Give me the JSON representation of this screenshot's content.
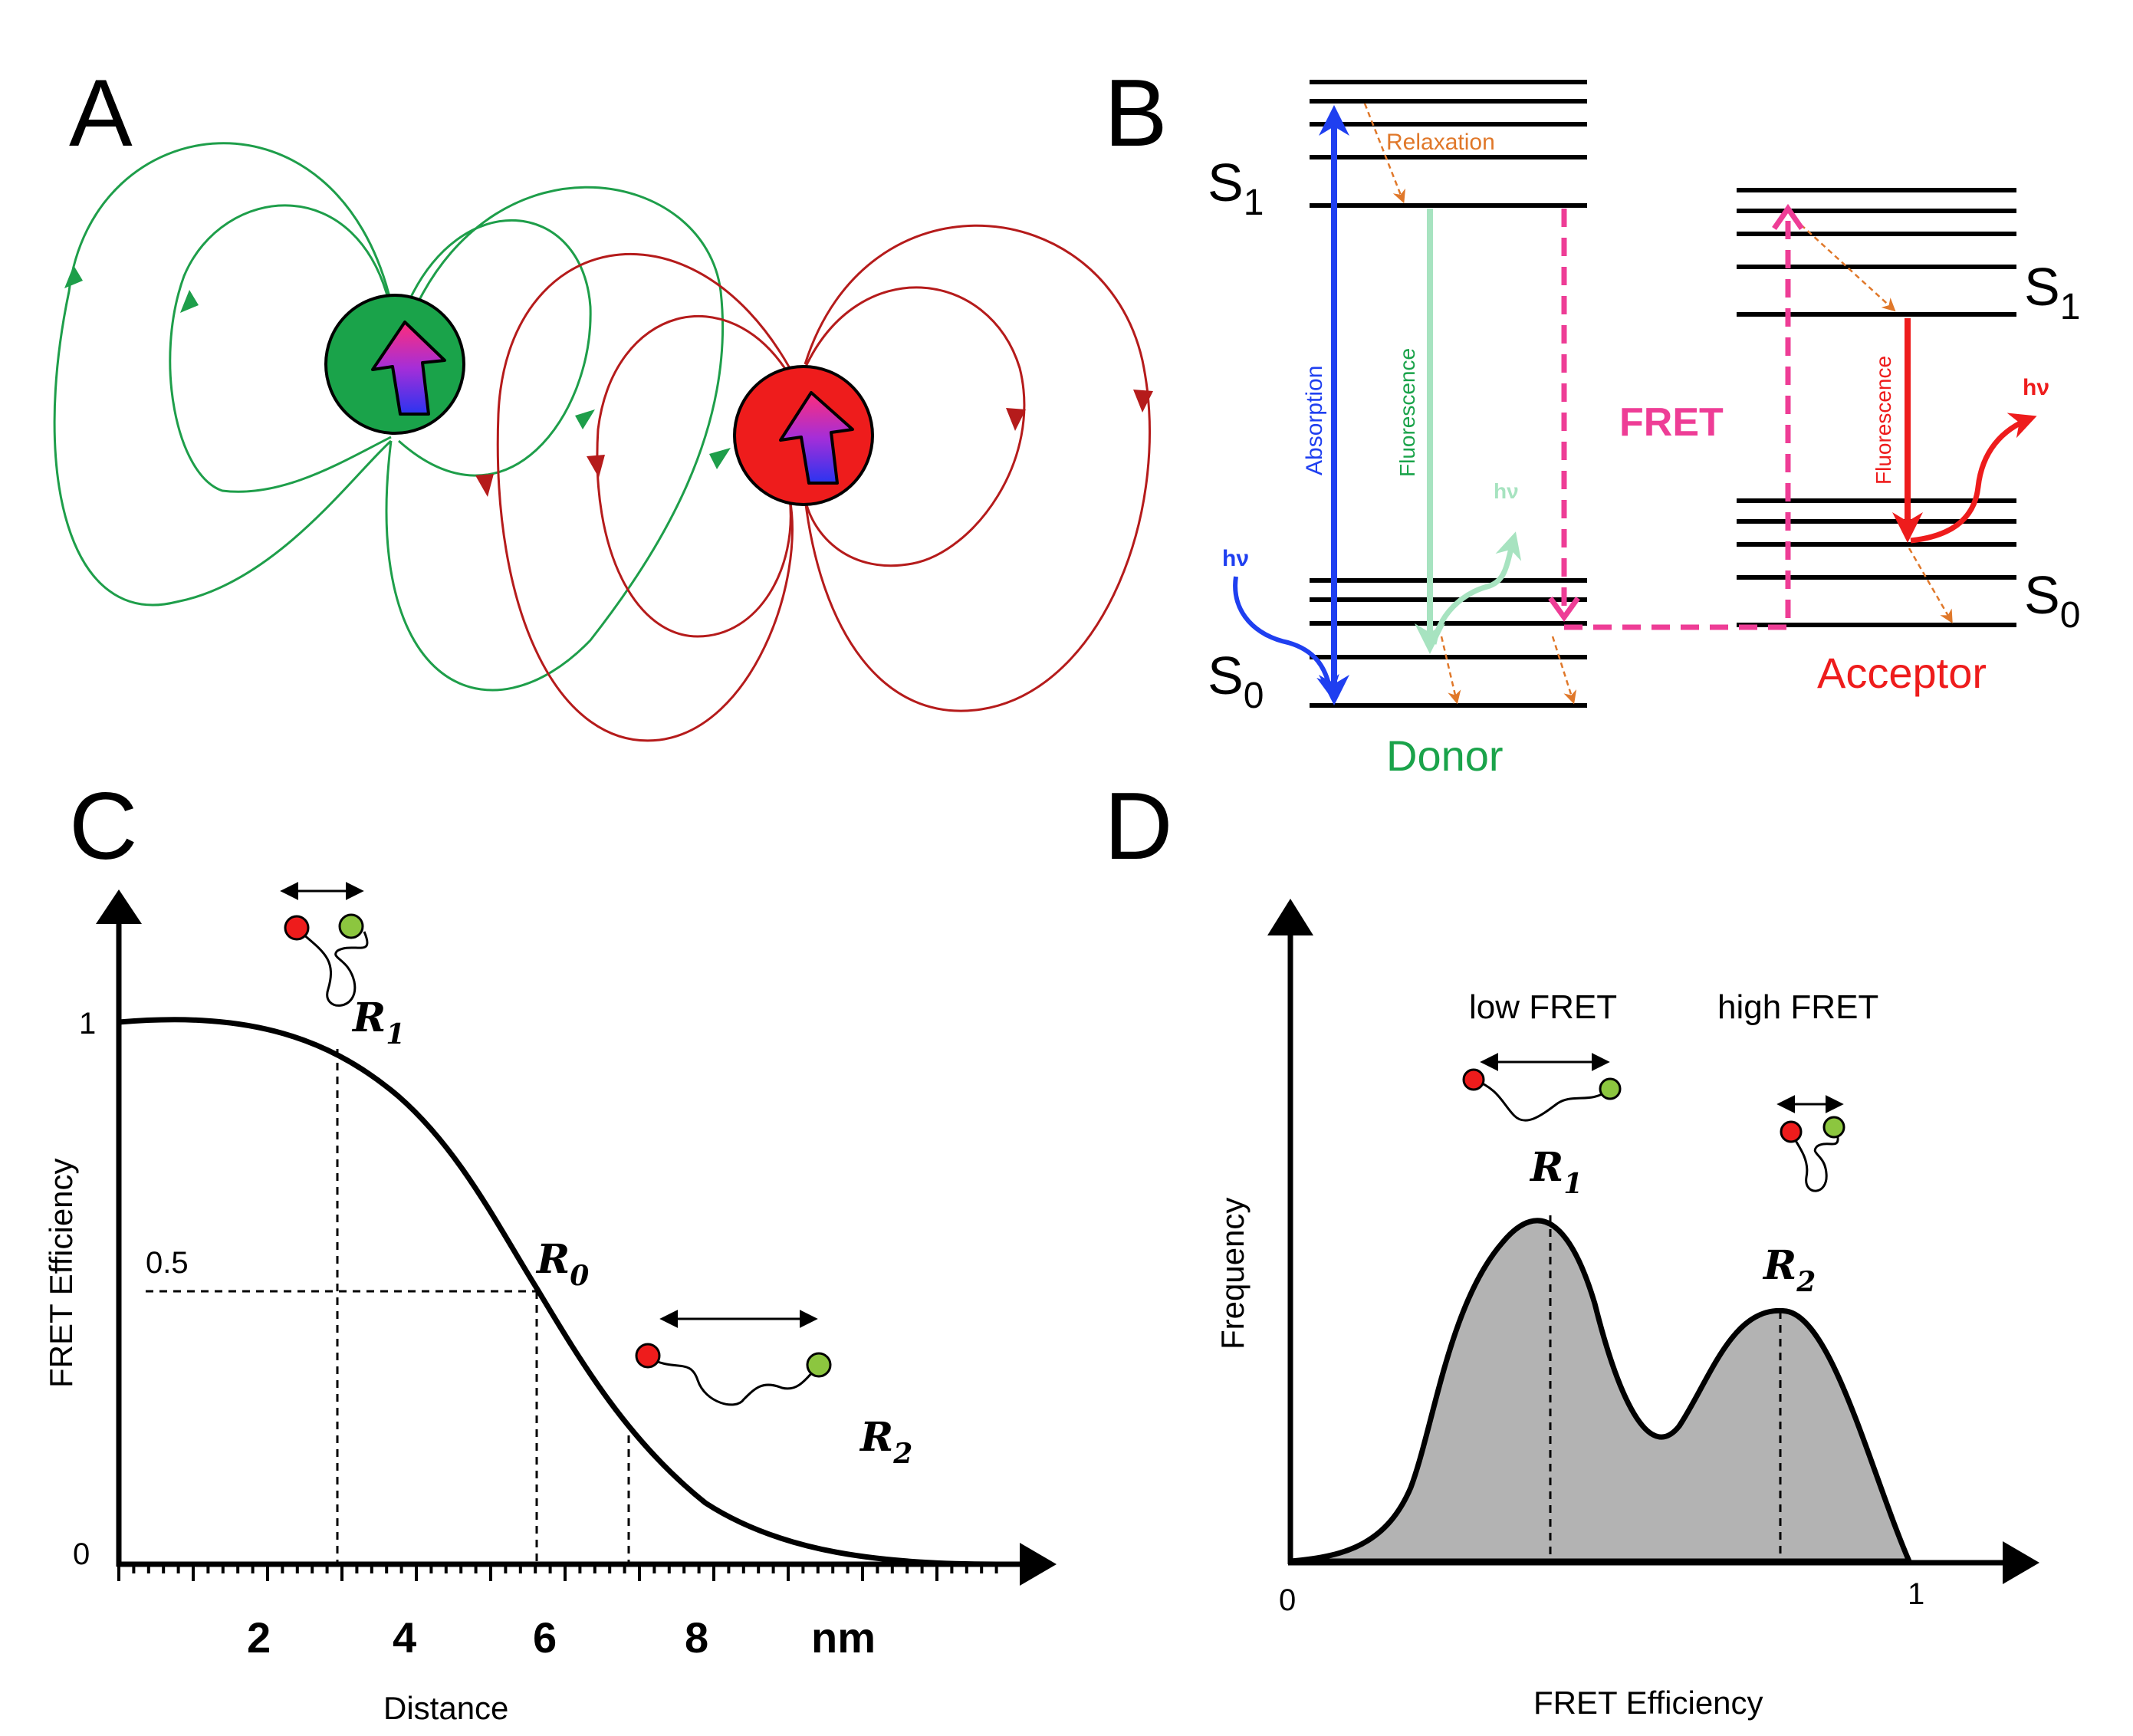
{
  "panels": {
    "a": {
      "letter": "A"
    },
    "b": {
      "letter": "B",
      "donor_s1": "S",
      "donor_s1_sub": "1",
      "donor_s0": "S",
      "donor_s0_sub": "0",
      "acceptor_s1": "S",
      "acceptor_s1_sub": "1",
      "acceptor_s0": "S",
      "acceptor_s0_sub": "0",
      "relaxation": "Relaxation",
      "absorption": "Absorption",
      "donor_fluorescence": "Fluorescence",
      "acceptor_fluorescence": "Fluorescence",
      "fret": "FRET",
      "hv_in": "hν",
      "hv_donor": "hν",
      "hv_acceptor": "hν",
      "donor": "Donor",
      "acceptor": "Acceptor"
    },
    "c": {
      "letter": "C",
      "y_label": "FRET Efficiency",
      "x_label": "Distance",
      "y_tick_1": "1",
      "y_tick_0": "0",
      "y_tick_half": "0.5",
      "x_ticks": [
        "2",
        "4",
        "6",
        "8",
        "nm"
      ],
      "r1": "R",
      "r1_sub": "1",
      "r0": "R",
      "r0_sub": "0",
      "r2": "R",
      "r2_sub": "2"
    },
    "d": {
      "letter": "D",
      "y_label": "Frequency",
      "x_label": "FRET Efficiency",
      "x_tick_0": "0",
      "x_tick_1": "1",
      "low_fret": "low FRET",
      "high_fret": "high FRET",
      "r1": "R",
      "r1_sub": "1",
      "r2": "R",
      "r2_sub": "2"
    }
  },
  "colors": {
    "donor_green": "#1aa34a",
    "acceptor_red": "#ee1c1c",
    "field_green": "#1e9e4a",
    "field_red": "#b51b1b",
    "absorption_blue": "#1f3ff0",
    "fret_pink": "#ee3d96",
    "relax_orange": "#e0782a",
    "donor_fluor": "#a7e3c0",
    "histogram_fill": "#b3b3b3"
  },
  "chart_data": [
    {
      "type": "line",
      "panel": "C",
      "xlabel": "Distance",
      "ylabel": "FRET Efficiency",
      "x_unit": "nm",
      "x": [
        0,
        1,
        2,
        3,
        4,
        5,
        5.8,
        6.5,
        7,
        8,
        9,
        10,
        11,
        12
      ],
      "y": [
        1.0,
        0.998,
        0.985,
        0.93,
        0.82,
        0.66,
        0.5,
        0.37,
        0.29,
        0.16,
        0.09,
        0.05,
        0.02,
        0.0
      ],
      "xlim": [
        0,
        12.8
      ],
      "ylim": [
        0,
        1.2
      ],
      "markers": {
        "R1": 3.0,
        "R0": 5.8,
        "R2": 7.1
      }
    },
    {
      "type": "area",
      "panel": "D",
      "xlabel": "FRET Efficiency",
      "ylabel": "Frequency",
      "x": [
        0,
        0.1,
        0.2,
        0.3,
        0.42,
        0.5,
        0.6,
        0.7,
        0.78,
        0.85,
        1.0
      ],
      "y": [
        0.0,
        0.04,
        0.3,
        0.82,
        1.0,
        0.78,
        0.35,
        0.62,
        0.7,
        0.5,
        0.0
      ],
      "xlim": [
        0,
        1.1
      ],
      "peaks": {
        "R1": 0.42,
        "R2": 0.78
      }
    }
  ]
}
